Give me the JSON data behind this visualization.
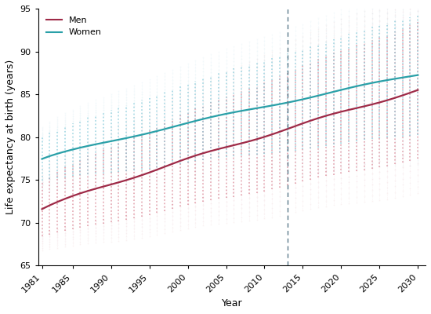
{
  "title": "",
  "xlabel": "Year",
  "ylabel": "Life expectancy at birth (years)",
  "ylim": [
    65,
    95
  ],
  "xlim": [
    1980.5,
    2031
  ],
  "yticks": [
    65,
    70,
    75,
    80,
    85,
    90,
    95
  ],
  "xticks": [
    1981,
    1985,
    1990,
    1995,
    2000,
    2005,
    2010,
    2015,
    2020,
    2025,
    2030
  ],
  "vline_x": 2013,
  "men_color": "#9e2a47",
  "women_color": "#2aa0a8",
  "men_ci_color": "#d88090",
  "women_ci_color": "#80c8d8",
  "men_dot_color": "#e0a8b0",
  "women_dot_color": "#b0dce8",
  "men_mean_1981": 71.6,
  "men_mean_2030": 85.5,
  "women_mean_1981": 77.4,
  "women_mean_2030": 87.3,
  "men_ci_half_1981": 3.2,
  "men_ci_half_2030": 8.0,
  "women_ci_half_1981": 2.5,
  "women_ci_half_2030": 7.0,
  "men_outer_mult": 1.5,
  "women_outer_mult": 1.5,
  "legend_men": "Men",
  "legend_women": "Women",
  "years_start": 1981,
  "years_end": 2030,
  "figwidth": 5.5,
  "figheight": 4.0
}
